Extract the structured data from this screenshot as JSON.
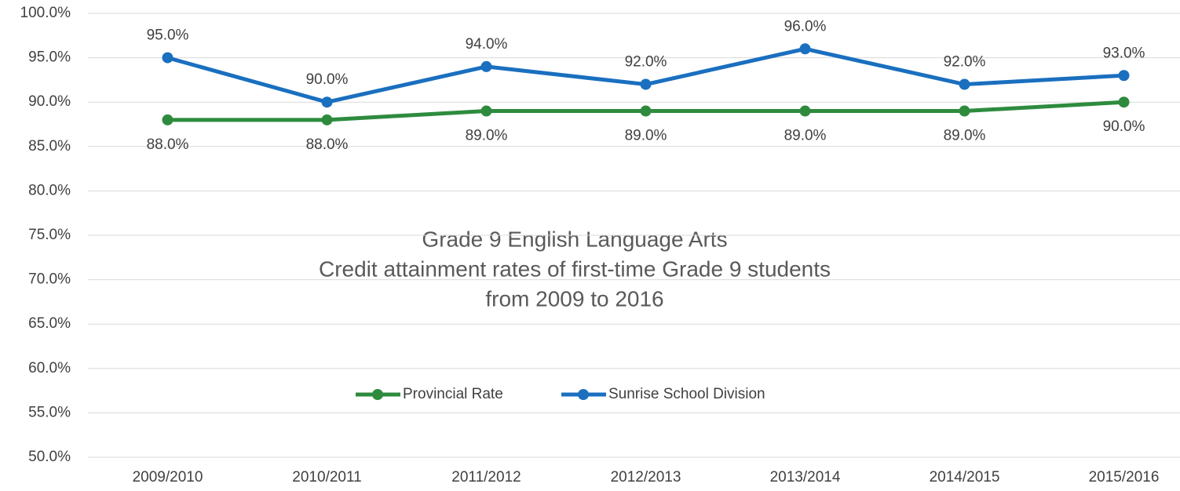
{
  "chart_data": {
    "type": "line",
    "title": "Grade 9 English Language Arts",
    "subtitle": [
      "Credit attainment rates of first-time Grade 9 students",
      "from 2009 to 2016"
    ],
    "categories": [
      "2009/2010",
      "2010/2011",
      "2011/2012",
      "2012/2013",
      "2013/2014",
      "2014/2015",
      "2015/2016"
    ],
    "series": [
      {
        "name": "Provincial Rate",
        "color": "#2e8b3e",
        "values": [
          88,
          88,
          89,
          89,
          89,
          89,
          90
        ],
        "value_labels": [
          "88.0%",
          "88.0%",
          "89.0%",
          "89.0%",
          "89.0%",
          "89.0%",
          "90.0%"
        ]
      },
      {
        "name": "Sunrise School Division",
        "color": "#1a6fbf",
        "values": [
          95,
          90,
          94,
          92,
          96,
          92,
          93
        ],
        "value_labels": [
          "95.0%",
          "90.0%",
          "94.0%",
          "92.0%",
          "96.0%",
          "92.0%",
          "93.0%"
        ]
      }
    ],
    "ylim": [
      50,
      100
    ],
    "yticks": [
      {
        "value": 50,
        "label": "50.0%"
      },
      {
        "value": 55,
        "label": "55.0%"
      },
      {
        "value": 60,
        "label": "60.0%"
      },
      {
        "value": 65,
        "label": "65.0%"
      },
      {
        "value": 70,
        "label": "70.0%"
      },
      {
        "value": 75,
        "label": "75.0%"
      },
      {
        "value": 80,
        "label": "80.0%"
      },
      {
        "value": 85,
        "label": "85.0%"
      },
      {
        "value": 90,
        "label": "90.0%"
      },
      {
        "value": 95,
        "label": "95.0%"
      },
      {
        "value": 100,
        "label": "100.0%"
      }
    ],
    "grid": true,
    "legend": "inside-bottom"
  }
}
